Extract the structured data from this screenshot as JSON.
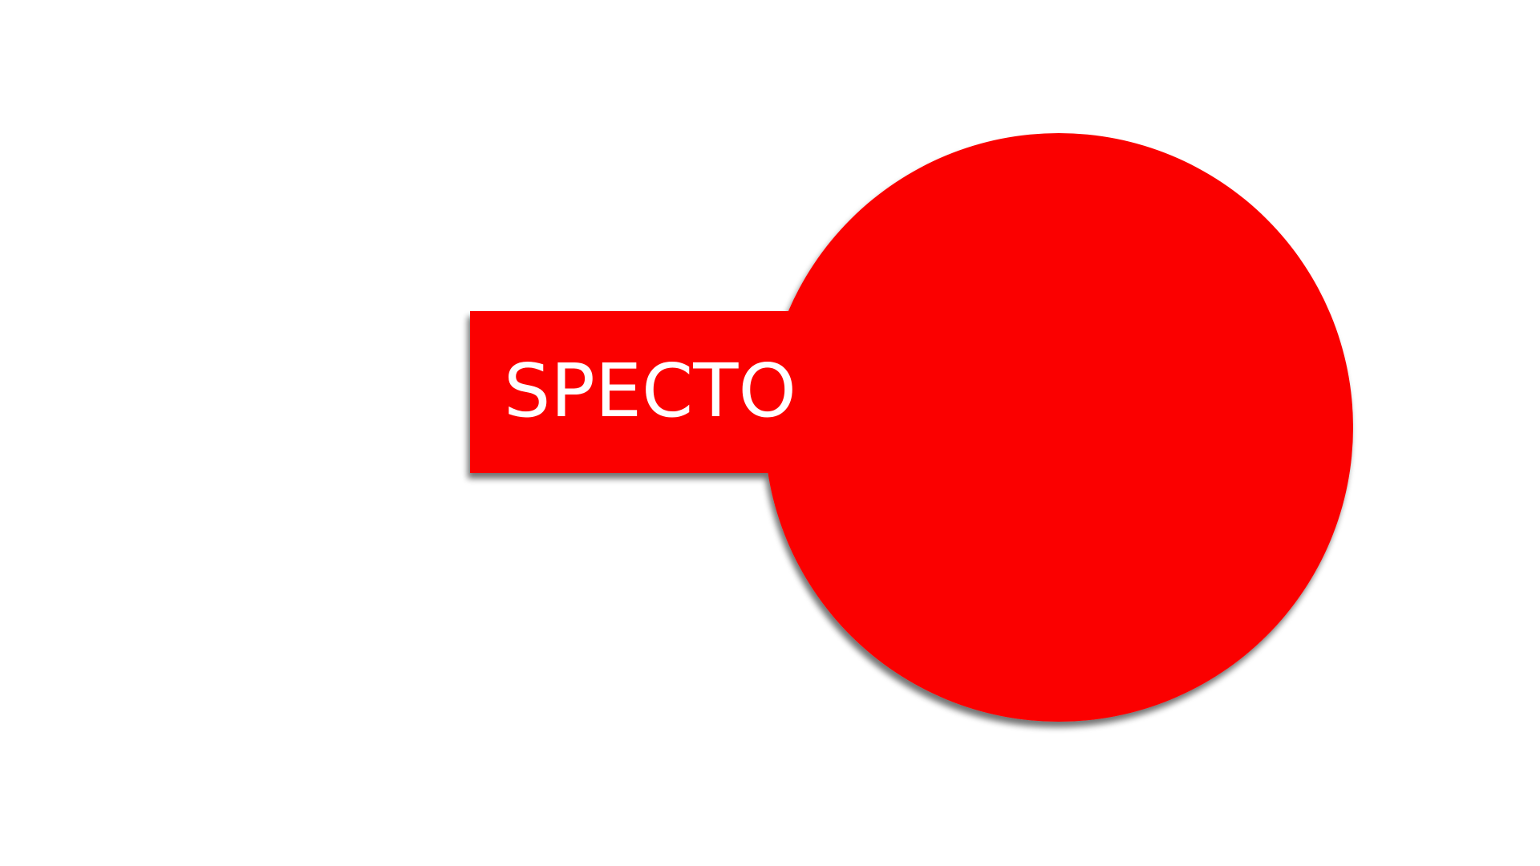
{
  "logo": {
    "text": "SPECTO",
    "fill_color": "#fb0606",
    "text_color": "#ffffff",
    "background_color": "#ffffff",
    "shadow_color": "#7a7a7a"
  }
}
